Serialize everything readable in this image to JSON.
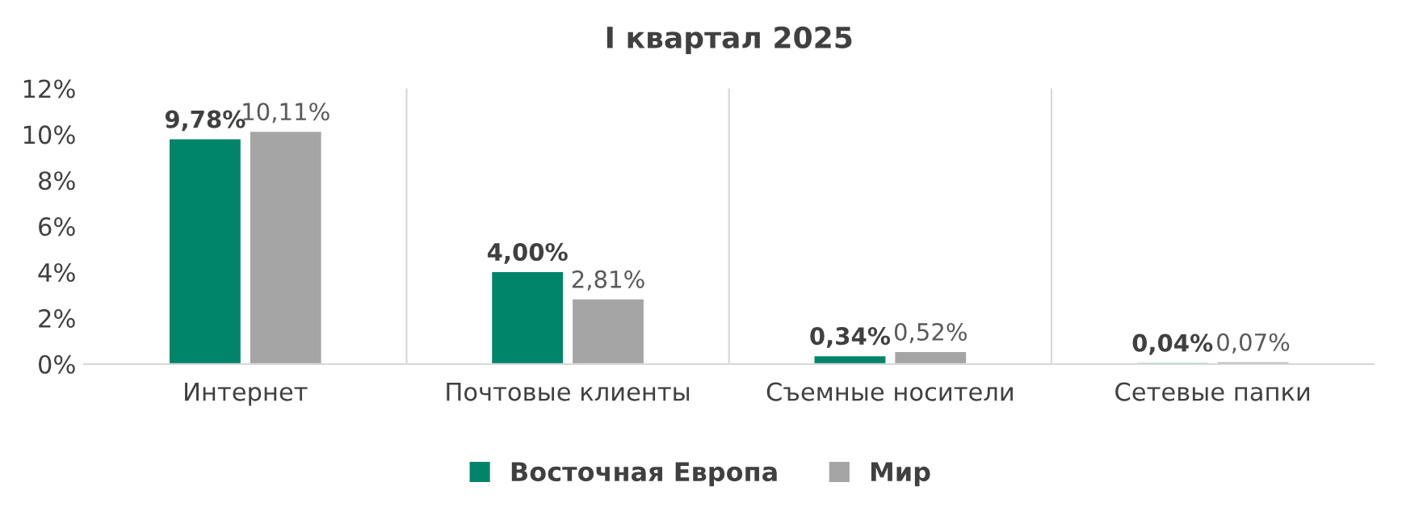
{
  "chart_data": {
    "type": "bar",
    "title": "I квартал 2025",
    "categories": [
      "Интернет",
      "Почтовые клиенты",
      "Съемные носители",
      "Сетевые папки"
    ],
    "series": [
      {
        "name": "Восточная Европа",
        "color": "#00846a",
        "values": [
          9.78,
          4.0,
          0.34,
          0.04
        ],
        "value_labels": [
          "9,78%",
          "4,00%",
          "0,34%",
          "0,04%"
        ]
      },
      {
        "name": "Мир",
        "color": "#a5a5a5",
        "values": [
          10.11,
          2.81,
          0.52,
          0.07
        ],
        "value_labels": [
          "10,11%",
          "2,81%",
          "0,52%",
          "0,07%"
        ]
      }
    ],
    "ylim": [
      0,
      12
    ],
    "yticks": [
      {
        "value": 0,
        "label": "0%"
      },
      {
        "value": 2,
        "label": "2%"
      },
      {
        "value": 4,
        "label": "4%"
      },
      {
        "value": 6,
        "label": "6%"
      },
      {
        "value": 8,
        "label": "8%"
      },
      {
        "value": 10,
        "label": "10%"
      },
      {
        "value": 12,
        "label": "12%"
      }
    ],
    "grid": "x",
    "legend": "bottom"
  }
}
